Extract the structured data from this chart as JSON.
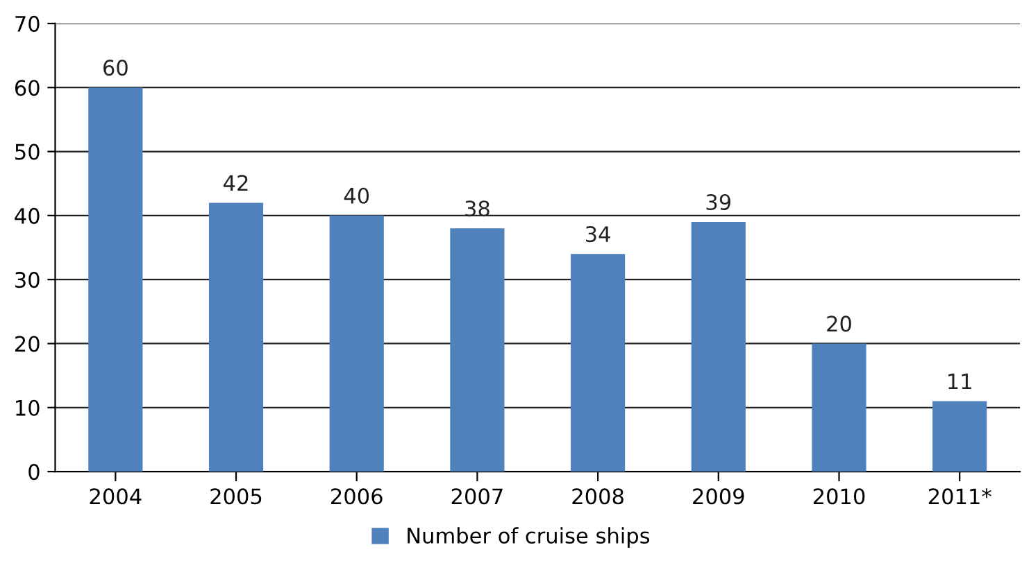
{
  "chart_data": {
    "type": "bar",
    "categories": [
      "2004",
      "2005",
      "2006",
      "2007",
      "2008",
      "2009",
      "2010",
      "2011*"
    ],
    "series": [
      {
        "name": "Number of cruise ships",
        "color": "#4f81bd",
        "values": [
          60,
          42,
          40,
          38,
          34,
          39,
          20,
          11
        ]
      }
    ],
    "ylim": [
      0,
      70
    ],
    "yticks": [
      0,
      10,
      20,
      30,
      40,
      50,
      60,
      70
    ],
    "grid": "y",
    "legend": "bottom",
    "data_labels": true
  }
}
